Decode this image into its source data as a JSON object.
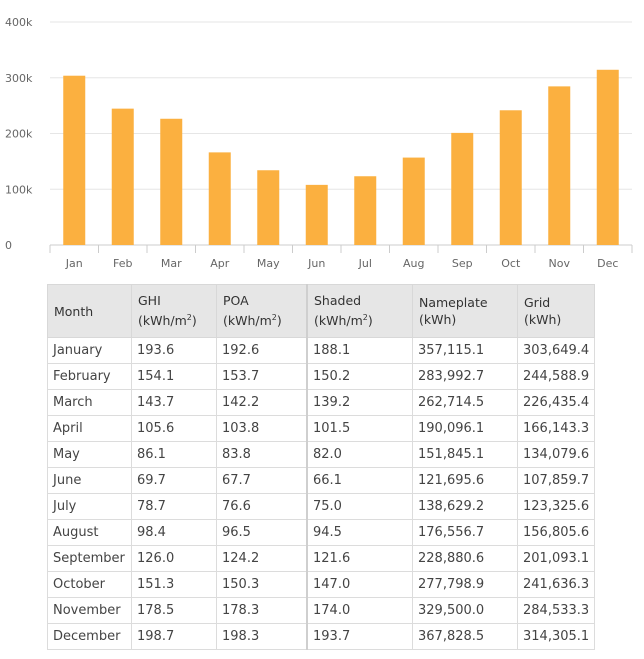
{
  "chart_data": {
    "type": "bar",
    "categories": [
      "Jan",
      "Feb",
      "Mar",
      "Apr",
      "May",
      "Jun",
      "Jul",
      "Aug",
      "Sep",
      "Oct",
      "Nov",
      "Dec"
    ],
    "values": [
      303649.4,
      244588.9,
      226435.4,
      166143.3,
      134079.6,
      107859.7,
      123325.6,
      156805.6,
      201093.1,
      241636.3,
      284533.3,
      314305.1
    ],
    "ylim": [
      0,
      400000
    ],
    "yticks": [
      0,
      100000,
      200000,
      300000,
      400000
    ],
    "ytick_labels": [
      "0",
      "100k",
      "200k",
      "300k",
      "400k"
    ],
    "grid": true,
    "bar_color": "#fbb040"
  },
  "table": {
    "headers": [
      {
        "label": "Month",
        "unit": ""
      },
      {
        "label": "GHI",
        "unit": "(kWh/m",
        "sup": "2"
      },
      {
        "label": "POA",
        "unit": "(kWh/m",
        "sup": "2"
      },
      {
        "label": "Shaded",
        "unit": "(kWh/m",
        "sup": "2"
      },
      {
        "label": "Nameplate",
        "unit": "(kWh)"
      },
      {
        "label": "Grid",
        "unit": "(kWh)"
      }
    ],
    "rows": [
      [
        "January",
        "193.6",
        "192.6",
        "188.1",
        "357,115.1",
        "303,649.4"
      ],
      [
        "February",
        "154.1",
        "153.7",
        "150.2",
        "283,992.7",
        "244,588.9"
      ],
      [
        "March",
        "143.7",
        "142.2",
        "139.2",
        "262,714.5",
        "226,435.4"
      ],
      [
        "April",
        "105.6",
        "103.8",
        "101.5",
        "190,096.1",
        "166,143.3"
      ],
      [
        "May",
        "86.1",
        "83.8",
        "82.0",
        "151,845.1",
        "134,079.6"
      ],
      [
        "June",
        "69.7",
        "67.7",
        "66.1",
        "121,695.6",
        "107,859.7"
      ],
      [
        "July",
        "78.7",
        "76.6",
        "75.0",
        "138,629.2",
        "123,325.6"
      ],
      [
        "August",
        "98.4",
        "96.5",
        "94.5",
        "176,556.7",
        "156,805.6"
      ],
      [
        "September",
        "126.0",
        "124.2",
        "121.6",
        "228,880.6",
        "201,093.1"
      ],
      [
        "October",
        "151.3",
        "150.3",
        "147.0",
        "277,798.9",
        "241,636.3"
      ],
      [
        "November",
        "178.5",
        "178.3",
        "174.0",
        "329,500.0",
        "284,533.3"
      ],
      [
        "December",
        "198.7",
        "198.3",
        "193.7",
        "367,828.5",
        "314,305.1"
      ]
    ]
  }
}
